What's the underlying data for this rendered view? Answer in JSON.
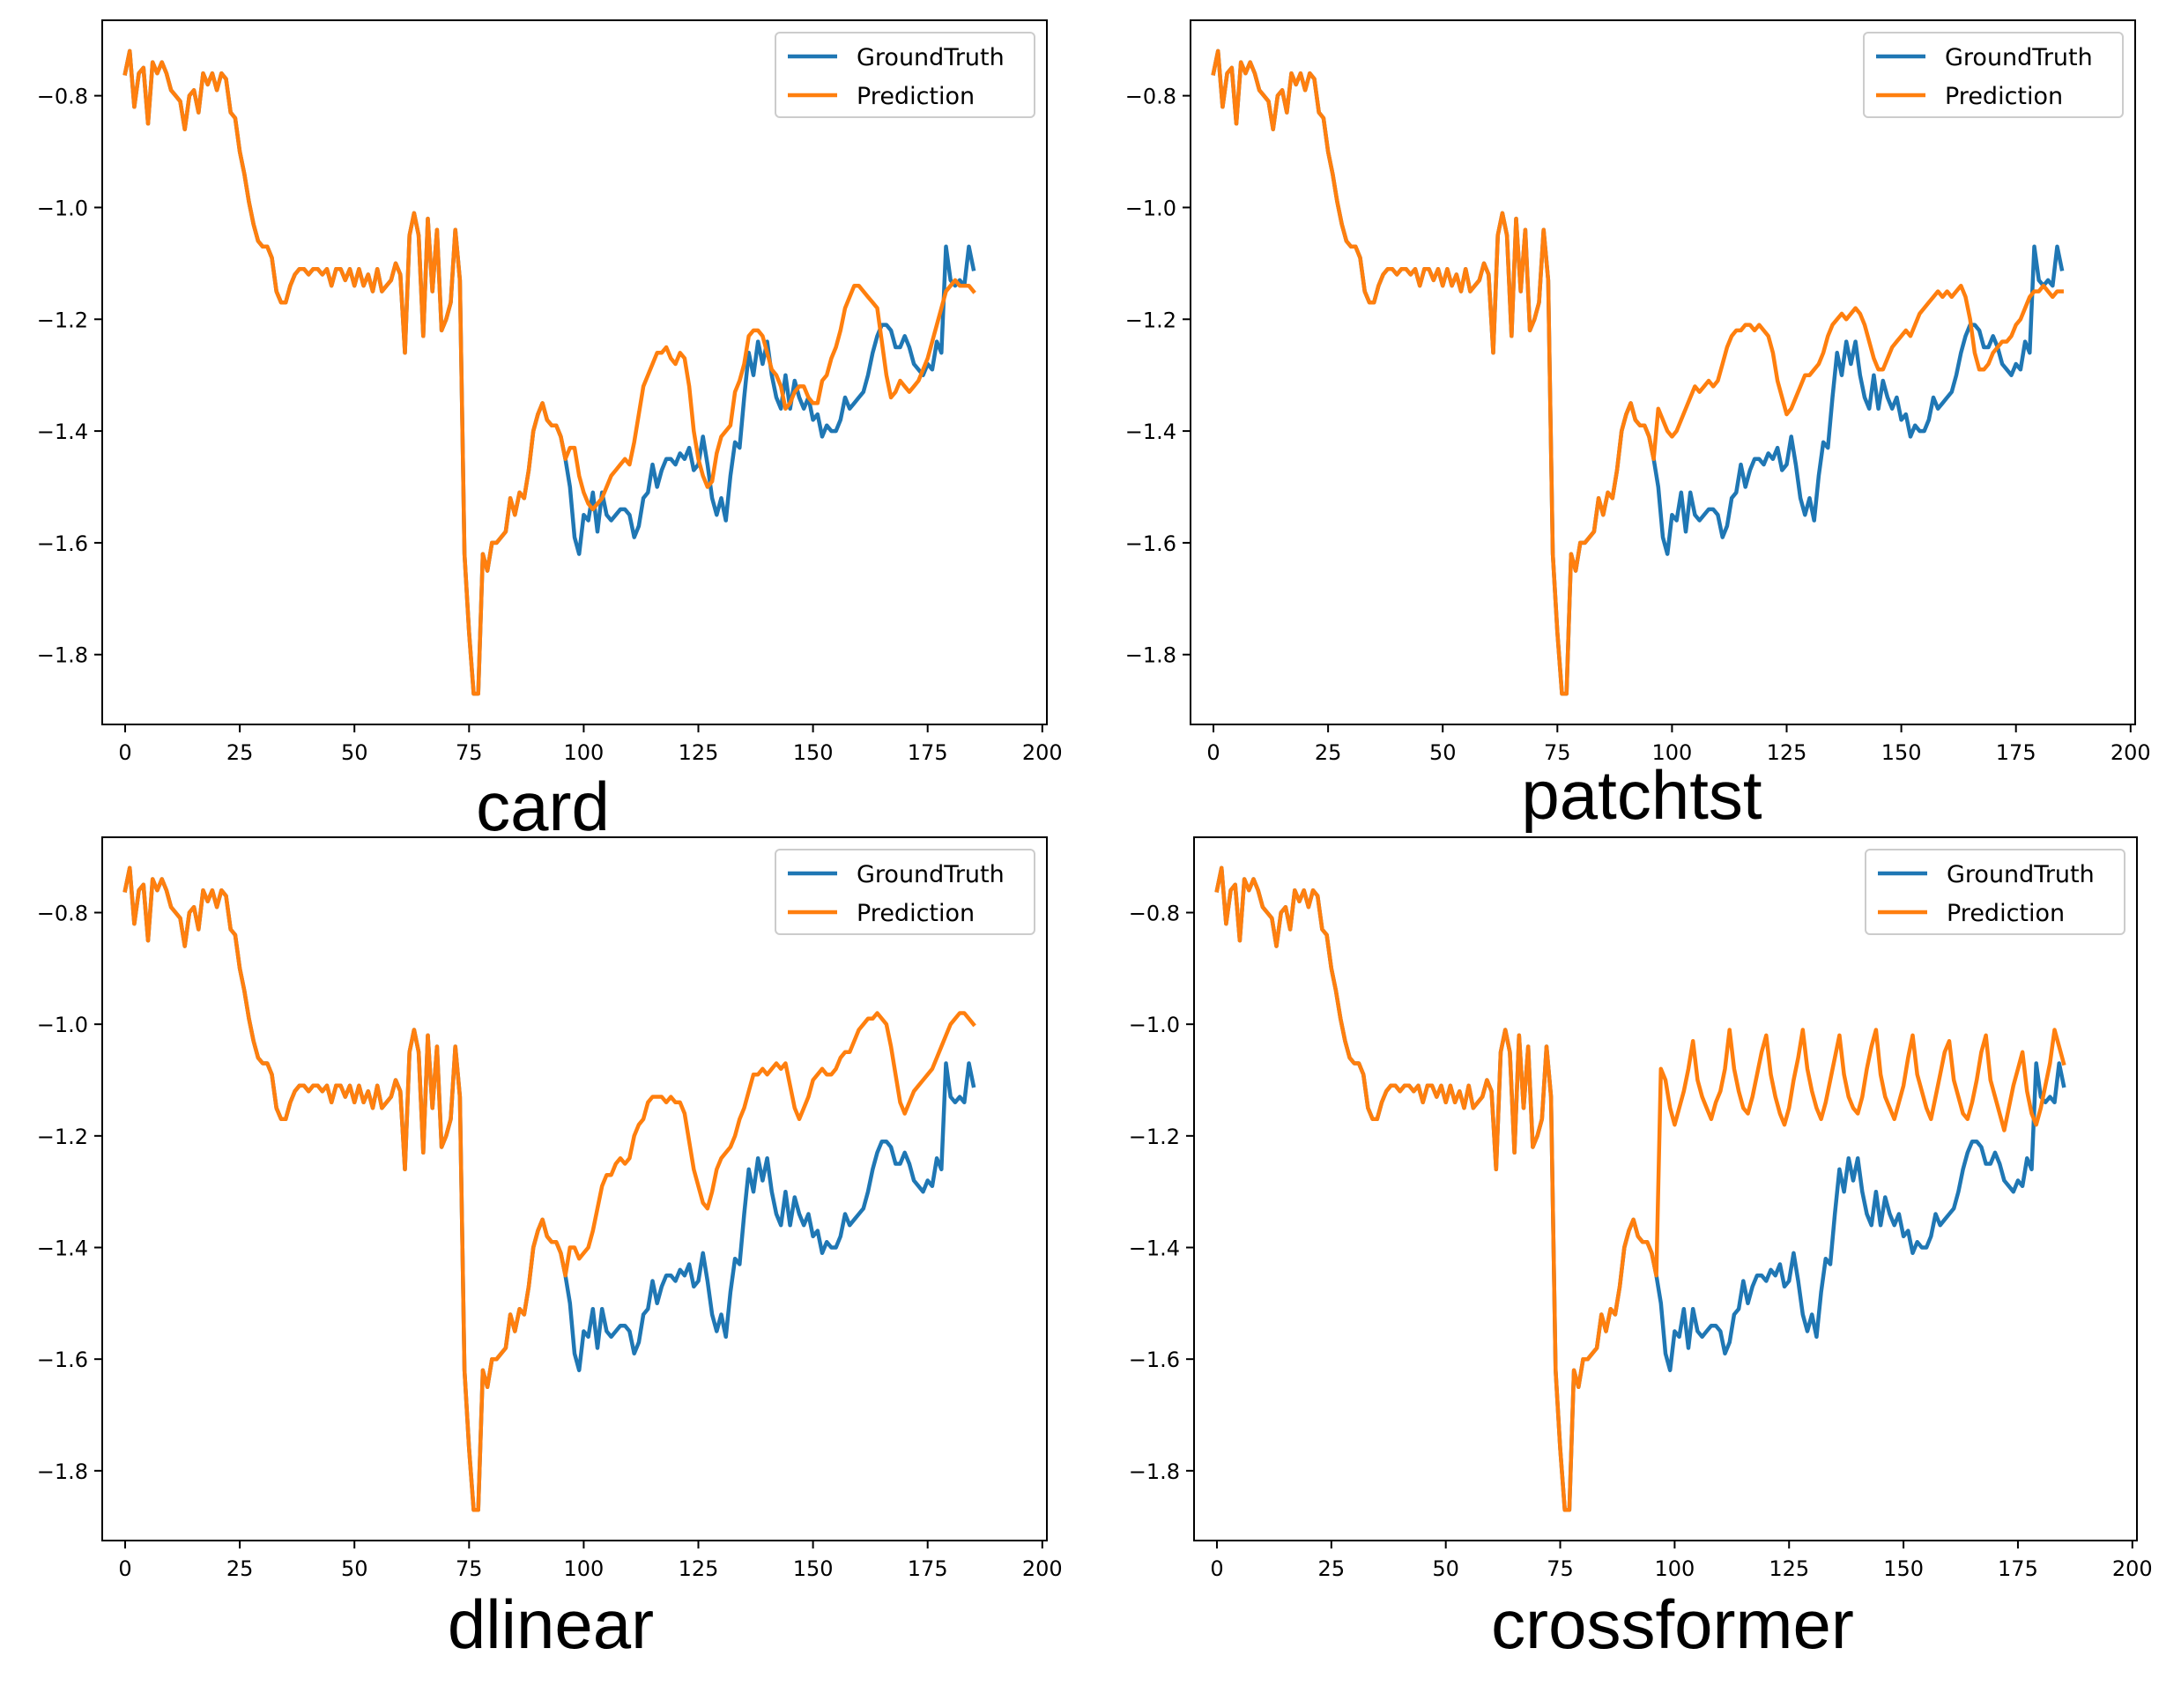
{
  "figure": {
    "background": "#ffffff",
    "colors": {
      "groundtruth": "#1f77b4",
      "prediction": "#ff7f0e"
    }
  },
  "chart_data": [
    {
      "type": "line",
      "title": "card",
      "xlabel": "",
      "ylabel": "",
      "xlim": [
        -5,
        201
      ],
      "ylim": [
        -1.925,
        -0.665
      ],
      "xticks": [
        0,
        25,
        50,
        75,
        100,
        125,
        150,
        175,
        200
      ],
      "yticks": [
        -0.8,
        -1.0,
        -1.2,
        -1.4,
        -1.6,
        -1.8
      ],
      "legend": {
        "position": "top-right",
        "entries": [
          "GroundTruth",
          "Prediction"
        ]
      },
      "history": [
        -0.76,
        -0.72,
        -0.82,
        -0.76,
        -0.75,
        -0.85,
        -0.74,
        -0.76,
        -0.74,
        -0.76,
        -0.79,
        -0.8,
        -0.81,
        -0.86,
        -0.8,
        -0.79,
        -0.83,
        -0.76,
        -0.78,
        -0.76,
        -0.79,
        -0.76,
        -0.77,
        -0.83,
        -0.84,
        -0.9,
        -0.94,
        -0.99,
        -1.03,
        -1.06,
        -1.07,
        -1.07,
        -1.09,
        -1.15,
        -1.17,
        -1.17,
        -1.14,
        -1.12,
        -1.11,
        -1.11,
        -1.12,
        -1.11,
        -1.11,
        -1.12,
        -1.11,
        -1.14,
        -1.11,
        -1.11,
        -1.13,
        -1.11,
        -1.14,
        -1.11,
        -1.14,
        -1.12,
        -1.15,
        -1.11,
        -1.15,
        -1.14,
        -1.13,
        -1.1,
        -1.12,
        -1.26,
        -1.05,
        -1.01,
        -1.05,
        -1.23,
        -1.02,
        -1.15,
        -1.04,
        -1.22,
        -1.2,
        -1.17,
        -1.04,
        -1.13,
        -1.62,
        -1.76,
        -1.87,
        -1.87,
        -1.62,
        -1.65,
        -1.6,
        -1.6,
        -1.59,
        -1.58,
        -1.52,
        -1.55,
        -1.51,
        -1.52,
        -1.47,
        -1.4,
        -1.37,
        -1.35,
        -1.38,
        -1.39,
        -1.39,
        -1.41,
        -1.45
      ],
      "groundtruth_future": [
        -1.45,
        -1.5,
        -1.59,
        -1.62,
        -1.55,
        -1.56,
        -1.51,
        -1.58,
        -1.51,
        -1.55,
        -1.56,
        -1.55,
        -1.54,
        -1.54,
        -1.55,
        -1.59,
        -1.57,
        -1.52,
        -1.51,
        -1.46,
        -1.5,
        -1.47,
        -1.45,
        -1.45,
        -1.46,
        -1.44,
        -1.45,
        -1.43,
        -1.47,
        -1.46,
        -1.41,
        -1.46,
        -1.52,
        -1.55,
        -1.52,
        -1.56,
        -1.48,
        -1.42,
        -1.43,
        -1.34,
        -1.26,
        -1.3,
        -1.24,
        -1.28,
        -1.24,
        -1.3,
        -1.34,
        -1.36,
        -1.3,
        -1.36,
        -1.31,
        -1.34,
        -1.36,
        -1.34,
        -1.38,
        -1.37,
        -1.41,
        -1.39,
        -1.4,
        -1.4,
        -1.38,
        -1.34,
        -1.36,
        -1.35,
        -1.34,
        -1.33,
        -1.3,
        -1.26,
        -1.23,
        -1.21,
        -1.21,
        -1.22,
        -1.25,
        -1.25,
        -1.23,
        -1.25,
        -1.28,
        -1.29,
        -1.3,
        -1.28,
        -1.29,
        -1.24,
        -1.26,
        -1.07,
        -1.13,
        -1.14,
        -1.13,
        -1.14,
        -1.07,
        -1.11
      ],
      "prediction_future": [
        -1.45,
        -1.43,
        -1.43,
        -1.48,
        -1.51,
        -1.53,
        -1.54,
        -1.53,
        -1.52,
        -1.5,
        -1.48,
        -1.47,
        -1.46,
        -1.45,
        -1.46,
        -1.42,
        -1.37,
        -1.32,
        -1.3,
        -1.28,
        -1.26,
        -1.26,
        -1.25,
        -1.27,
        -1.28,
        -1.26,
        -1.27,
        -1.32,
        -1.4,
        -1.45,
        -1.48,
        -1.5,
        -1.49,
        -1.44,
        -1.41,
        -1.4,
        -1.39,
        -1.33,
        -1.31,
        -1.28,
        -1.23,
        -1.22,
        -1.22,
        -1.23,
        -1.26,
        -1.29,
        -1.3,
        -1.32,
        -1.36,
        -1.35,
        -1.33,
        -1.32,
        -1.32,
        -1.34,
        -1.35,
        -1.35,
        -1.31,
        -1.3,
        -1.27,
        -1.25,
        -1.22,
        -1.18,
        -1.16,
        -1.14,
        -1.14,
        -1.15,
        -1.16,
        -1.17,
        -1.18,
        -1.24,
        -1.3,
        -1.34,
        -1.33,
        -1.31,
        -1.32,
        -1.33,
        -1.32,
        -1.31,
        -1.29,
        -1.27,
        -1.24,
        -1.21,
        -1.18,
        -1.15,
        -1.14,
        -1.13,
        -1.14,
        -1.14,
        -1.14,
        -1.15
      ]
    },
    {
      "type": "line",
      "title": "patchtst",
      "xlabel": "",
      "ylabel": "",
      "xlim": [
        -5,
        201
      ],
      "ylim": [
        -1.925,
        -0.665
      ],
      "xticks": [
        0,
        25,
        50,
        75,
        100,
        125,
        150,
        175,
        200
      ],
      "yticks": [
        -0.8,
        -1.0,
        -1.2,
        -1.4,
        -1.6,
        -1.8
      ],
      "legend": {
        "position": "top-right",
        "entries": [
          "GroundTruth",
          "Prediction"
        ]
      },
      "history": [
        -0.76,
        -0.72,
        -0.82,
        -0.76,
        -0.75,
        -0.85,
        -0.74,
        -0.76,
        -0.74,
        -0.76,
        -0.79,
        -0.8,
        -0.81,
        -0.86,
        -0.8,
        -0.79,
        -0.83,
        -0.76,
        -0.78,
        -0.76,
        -0.79,
        -0.76,
        -0.77,
        -0.83,
        -0.84,
        -0.9,
        -0.94,
        -0.99,
        -1.03,
        -1.06,
        -1.07,
        -1.07,
        -1.09,
        -1.15,
        -1.17,
        -1.17,
        -1.14,
        -1.12,
        -1.11,
        -1.11,
        -1.12,
        -1.11,
        -1.11,
        -1.12,
        -1.11,
        -1.14,
        -1.11,
        -1.11,
        -1.13,
        -1.11,
        -1.14,
        -1.11,
        -1.14,
        -1.12,
        -1.15,
        -1.11,
        -1.15,
        -1.14,
        -1.13,
        -1.1,
        -1.12,
        -1.26,
        -1.05,
        -1.01,
        -1.05,
        -1.23,
        -1.02,
        -1.15,
        -1.04,
        -1.22,
        -1.2,
        -1.17,
        -1.04,
        -1.13,
        -1.62,
        -1.76,
        -1.87,
        -1.87,
        -1.62,
        -1.65,
        -1.6,
        -1.6,
        -1.59,
        -1.58,
        -1.52,
        -1.55,
        -1.51,
        -1.52,
        -1.47,
        -1.4,
        -1.37,
        -1.35,
        -1.38,
        -1.39,
        -1.39,
        -1.41,
        -1.45
      ],
      "groundtruth_future": [
        -1.45,
        -1.5,
        -1.59,
        -1.62,
        -1.55,
        -1.56,
        -1.51,
        -1.58,
        -1.51,
        -1.55,
        -1.56,
        -1.55,
        -1.54,
        -1.54,
        -1.55,
        -1.59,
        -1.57,
        -1.52,
        -1.51,
        -1.46,
        -1.5,
        -1.47,
        -1.45,
        -1.45,
        -1.46,
        -1.44,
        -1.45,
        -1.43,
        -1.47,
        -1.46,
        -1.41,
        -1.46,
        -1.52,
        -1.55,
        -1.52,
        -1.56,
        -1.48,
        -1.42,
        -1.43,
        -1.34,
        -1.26,
        -1.3,
        -1.24,
        -1.28,
        -1.24,
        -1.3,
        -1.34,
        -1.36,
        -1.3,
        -1.36,
        -1.31,
        -1.34,
        -1.36,
        -1.34,
        -1.38,
        -1.37,
        -1.41,
        -1.39,
        -1.4,
        -1.4,
        -1.38,
        -1.34,
        -1.36,
        -1.35,
        -1.34,
        -1.33,
        -1.3,
        -1.26,
        -1.23,
        -1.21,
        -1.21,
        -1.22,
        -1.25,
        -1.25,
        -1.23,
        -1.25,
        -1.28,
        -1.29,
        -1.3,
        -1.28,
        -1.29,
        -1.24,
        -1.26,
        -1.07,
        -1.13,
        -1.14,
        -1.13,
        -1.14,
        -1.07,
        -1.11
      ],
      "prediction_future": [
        -1.45,
        -1.36,
        -1.38,
        -1.4,
        -1.41,
        -1.4,
        -1.38,
        -1.36,
        -1.34,
        -1.32,
        -1.33,
        -1.32,
        -1.31,
        -1.32,
        -1.31,
        -1.28,
        -1.25,
        -1.23,
        -1.22,
        -1.22,
        -1.21,
        -1.21,
        -1.22,
        -1.21,
        -1.22,
        -1.23,
        -1.26,
        -1.31,
        -1.34,
        -1.37,
        -1.36,
        -1.34,
        -1.32,
        -1.3,
        -1.3,
        -1.29,
        -1.28,
        -1.26,
        -1.23,
        -1.21,
        -1.2,
        -1.19,
        -1.2,
        -1.19,
        -1.18,
        -1.19,
        -1.21,
        -1.24,
        -1.27,
        -1.29,
        -1.29,
        -1.27,
        -1.25,
        -1.24,
        -1.23,
        -1.22,
        -1.23,
        -1.21,
        -1.19,
        -1.18,
        -1.17,
        -1.16,
        -1.15,
        -1.16,
        -1.15,
        -1.16,
        -1.15,
        -1.14,
        -1.16,
        -1.2,
        -1.26,
        -1.29,
        -1.29,
        -1.28,
        -1.26,
        -1.25,
        -1.24,
        -1.24,
        -1.23,
        -1.21,
        -1.2,
        -1.18,
        -1.16,
        -1.15,
        -1.15,
        -1.14,
        -1.15,
        -1.16,
        -1.15,
        -1.15
      ]
    },
    {
      "type": "line",
      "title": "dlinear",
      "xlabel": "",
      "ylabel": "",
      "xlim": [
        -5,
        201
      ],
      "ylim": [
        -1.925,
        -0.665
      ],
      "xticks": [
        0,
        25,
        50,
        75,
        100,
        125,
        150,
        175,
        200
      ],
      "yticks": [
        -0.8,
        -1.0,
        -1.2,
        -1.4,
        -1.6,
        -1.8
      ],
      "legend": {
        "position": "top-right",
        "entries": [
          "GroundTruth",
          "Prediction"
        ]
      },
      "history": [
        -0.76,
        -0.72,
        -0.82,
        -0.76,
        -0.75,
        -0.85,
        -0.74,
        -0.76,
        -0.74,
        -0.76,
        -0.79,
        -0.8,
        -0.81,
        -0.86,
        -0.8,
        -0.79,
        -0.83,
        -0.76,
        -0.78,
        -0.76,
        -0.79,
        -0.76,
        -0.77,
        -0.83,
        -0.84,
        -0.9,
        -0.94,
        -0.99,
        -1.03,
        -1.06,
        -1.07,
        -1.07,
        -1.09,
        -1.15,
        -1.17,
        -1.17,
        -1.14,
        -1.12,
        -1.11,
        -1.11,
        -1.12,
        -1.11,
        -1.11,
        -1.12,
        -1.11,
        -1.14,
        -1.11,
        -1.11,
        -1.13,
        -1.11,
        -1.14,
        -1.11,
        -1.14,
        -1.12,
        -1.15,
        -1.11,
        -1.15,
        -1.14,
        -1.13,
        -1.1,
        -1.12,
        -1.26,
        -1.05,
        -1.01,
        -1.05,
        -1.23,
        -1.02,
        -1.15,
        -1.04,
        -1.22,
        -1.2,
        -1.17,
        -1.04,
        -1.13,
        -1.62,
        -1.76,
        -1.87,
        -1.87,
        -1.62,
        -1.65,
        -1.6,
        -1.6,
        -1.59,
        -1.58,
        -1.52,
        -1.55,
        -1.51,
        -1.52,
        -1.47,
        -1.4,
        -1.37,
        -1.35,
        -1.38,
        -1.39,
        -1.39,
        -1.41,
        -1.45
      ],
      "groundtruth_future": [
        -1.45,
        -1.5,
        -1.59,
        -1.62,
        -1.55,
        -1.56,
        -1.51,
        -1.58,
        -1.51,
        -1.55,
        -1.56,
        -1.55,
        -1.54,
        -1.54,
        -1.55,
        -1.59,
        -1.57,
        -1.52,
        -1.51,
        -1.46,
        -1.5,
        -1.47,
        -1.45,
        -1.45,
        -1.46,
        -1.44,
        -1.45,
        -1.43,
        -1.47,
        -1.46,
        -1.41,
        -1.46,
        -1.52,
        -1.55,
        -1.52,
        -1.56,
        -1.48,
        -1.42,
        -1.43,
        -1.34,
        -1.26,
        -1.3,
        -1.24,
        -1.28,
        -1.24,
        -1.3,
        -1.34,
        -1.36,
        -1.3,
        -1.36,
        -1.31,
        -1.34,
        -1.36,
        -1.34,
        -1.38,
        -1.37,
        -1.41,
        -1.39,
        -1.4,
        -1.4,
        -1.38,
        -1.34,
        -1.36,
        -1.35,
        -1.34,
        -1.33,
        -1.3,
        -1.26,
        -1.23,
        -1.21,
        -1.21,
        -1.22,
        -1.25,
        -1.25,
        -1.23,
        -1.25,
        -1.28,
        -1.29,
        -1.3,
        -1.28,
        -1.29,
        -1.24,
        -1.26,
        -1.07,
        -1.13,
        -1.14,
        -1.13,
        -1.14,
        -1.07,
        -1.11
      ],
      "prediction_future": [
        -1.45,
        -1.4,
        -1.4,
        -1.42,
        -1.41,
        -1.4,
        -1.37,
        -1.33,
        -1.29,
        -1.27,
        -1.27,
        -1.25,
        -1.24,
        -1.25,
        -1.24,
        -1.2,
        -1.18,
        -1.17,
        -1.14,
        -1.13,
        -1.13,
        -1.13,
        -1.14,
        -1.13,
        -1.14,
        -1.14,
        -1.16,
        -1.21,
        -1.26,
        -1.29,
        -1.32,
        -1.33,
        -1.3,
        -1.26,
        -1.24,
        -1.23,
        -1.22,
        -1.2,
        -1.17,
        -1.15,
        -1.12,
        -1.09,
        -1.09,
        -1.08,
        -1.09,
        -1.08,
        -1.07,
        -1.08,
        -1.07,
        -1.11,
        -1.15,
        -1.17,
        -1.15,
        -1.13,
        -1.1,
        -1.09,
        -1.08,
        -1.09,
        -1.09,
        -1.08,
        -1.06,
        -1.05,
        -1.05,
        -1.03,
        -1.01,
        -1.0,
        -0.99,
        -0.99,
        -0.98,
        -0.99,
        -1.0,
        -1.04,
        -1.09,
        -1.14,
        -1.16,
        -1.14,
        -1.12,
        -1.11,
        -1.1,
        -1.09,
        -1.08,
        -1.06,
        -1.04,
        -1.02,
        -1.0,
        -0.99,
        -0.98,
        -0.98,
        -0.99,
        -1.0
      ]
    },
    {
      "type": "line",
      "title": "crossformer",
      "xlabel": "",
      "ylabel": "",
      "xlim": [
        -5,
        201
      ],
      "ylim": [
        -1.925,
        -0.665
      ],
      "xticks": [
        0,
        25,
        50,
        75,
        100,
        125,
        150,
        175,
        200
      ],
      "yticks": [
        -0.8,
        -1.0,
        -1.2,
        -1.4,
        -1.6,
        -1.8
      ],
      "legend": {
        "position": "top-right",
        "entries": [
          "GroundTruth",
          "Prediction"
        ]
      },
      "history": [
        -0.76,
        -0.72,
        -0.82,
        -0.76,
        -0.75,
        -0.85,
        -0.74,
        -0.76,
        -0.74,
        -0.76,
        -0.79,
        -0.8,
        -0.81,
        -0.86,
        -0.8,
        -0.79,
        -0.83,
        -0.76,
        -0.78,
        -0.76,
        -0.79,
        -0.76,
        -0.77,
        -0.83,
        -0.84,
        -0.9,
        -0.94,
        -0.99,
        -1.03,
        -1.06,
        -1.07,
        -1.07,
        -1.09,
        -1.15,
        -1.17,
        -1.17,
        -1.14,
        -1.12,
        -1.11,
        -1.11,
        -1.12,
        -1.11,
        -1.11,
        -1.12,
        -1.11,
        -1.14,
        -1.11,
        -1.11,
        -1.13,
        -1.11,
        -1.14,
        -1.11,
        -1.14,
        -1.12,
        -1.15,
        -1.11,
        -1.15,
        -1.14,
        -1.13,
        -1.1,
        -1.12,
        -1.26,
        -1.05,
        -1.01,
        -1.05,
        -1.23,
        -1.02,
        -1.15,
        -1.04,
        -1.22,
        -1.2,
        -1.17,
        -1.04,
        -1.13,
        -1.62,
        -1.76,
        -1.87,
        -1.87,
        -1.62,
        -1.65,
        -1.6,
        -1.6,
        -1.59,
        -1.58,
        -1.52,
        -1.55,
        -1.51,
        -1.52,
        -1.47,
        -1.4,
        -1.37,
        -1.35,
        -1.38,
        -1.39,
        -1.39,
        -1.41,
        -1.45
      ],
      "groundtruth_future": [
        -1.45,
        -1.5,
        -1.59,
        -1.62,
        -1.55,
        -1.56,
        -1.51,
        -1.58,
        -1.51,
        -1.55,
        -1.56,
        -1.55,
        -1.54,
        -1.54,
        -1.55,
        -1.59,
        -1.57,
        -1.52,
        -1.51,
        -1.46,
        -1.5,
        -1.47,
        -1.45,
        -1.45,
        -1.46,
        -1.44,
        -1.45,
        -1.43,
        -1.47,
        -1.46,
        -1.41,
        -1.46,
        -1.52,
        -1.55,
        -1.52,
        -1.56,
        -1.48,
        -1.42,
        -1.43,
        -1.34,
        -1.26,
        -1.3,
        -1.24,
        -1.28,
        -1.24,
        -1.3,
        -1.34,
        -1.36,
        -1.3,
        -1.36,
        -1.31,
        -1.34,
        -1.36,
        -1.34,
        -1.38,
        -1.37,
        -1.41,
        -1.39,
        -1.4,
        -1.4,
        -1.38,
        -1.34,
        -1.36,
        -1.35,
        -1.34,
        -1.33,
        -1.3,
        -1.26,
        -1.23,
        -1.21,
        -1.21,
        -1.22,
        -1.25,
        -1.25,
        -1.23,
        -1.25,
        -1.28,
        -1.29,
        -1.3,
        -1.28,
        -1.29,
        -1.24,
        -1.26,
        -1.07,
        -1.13,
        -1.14,
        -1.13,
        -1.14,
        -1.07,
        -1.11
      ],
      "prediction_future": [
        -1.45,
        -1.08,
        -1.1,
        -1.15,
        -1.18,
        -1.15,
        -1.12,
        -1.08,
        -1.03,
        -1.1,
        -1.13,
        -1.15,
        -1.17,
        -1.14,
        -1.12,
        -1.08,
        -1.01,
        -1.08,
        -1.12,
        -1.15,
        -1.16,
        -1.13,
        -1.09,
        -1.05,
        -1.02,
        -1.09,
        -1.13,
        -1.16,
        -1.18,
        -1.15,
        -1.1,
        -1.06,
        -1.01,
        -1.08,
        -1.12,
        -1.15,
        -1.17,
        -1.14,
        -1.1,
        -1.06,
        -1.02,
        -1.09,
        -1.13,
        -1.15,
        -1.16,
        -1.13,
        -1.08,
        -1.04,
        -1.01,
        -1.09,
        -1.13,
        -1.15,
        -1.17,
        -1.14,
        -1.11,
        -1.06,
        -1.02,
        -1.09,
        -1.12,
        -1.15,
        -1.17,
        -1.13,
        -1.09,
        -1.05,
        -1.03,
        -1.1,
        -1.13,
        -1.16,
        -1.17,
        -1.14,
        -1.1,
        -1.05,
        -1.02,
        -1.1,
        -1.13,
        -1.16,
        -1.19,
        -1.15,
        -1.11,
        -1.08,
        -1.05,
        -1.12,
        -1.16,
        -1.18,
        -1.15,
        -1.11,
        -1.07,
        -1.01,
        -1.04,
        -1.07
      ]
    }
  ]
}
